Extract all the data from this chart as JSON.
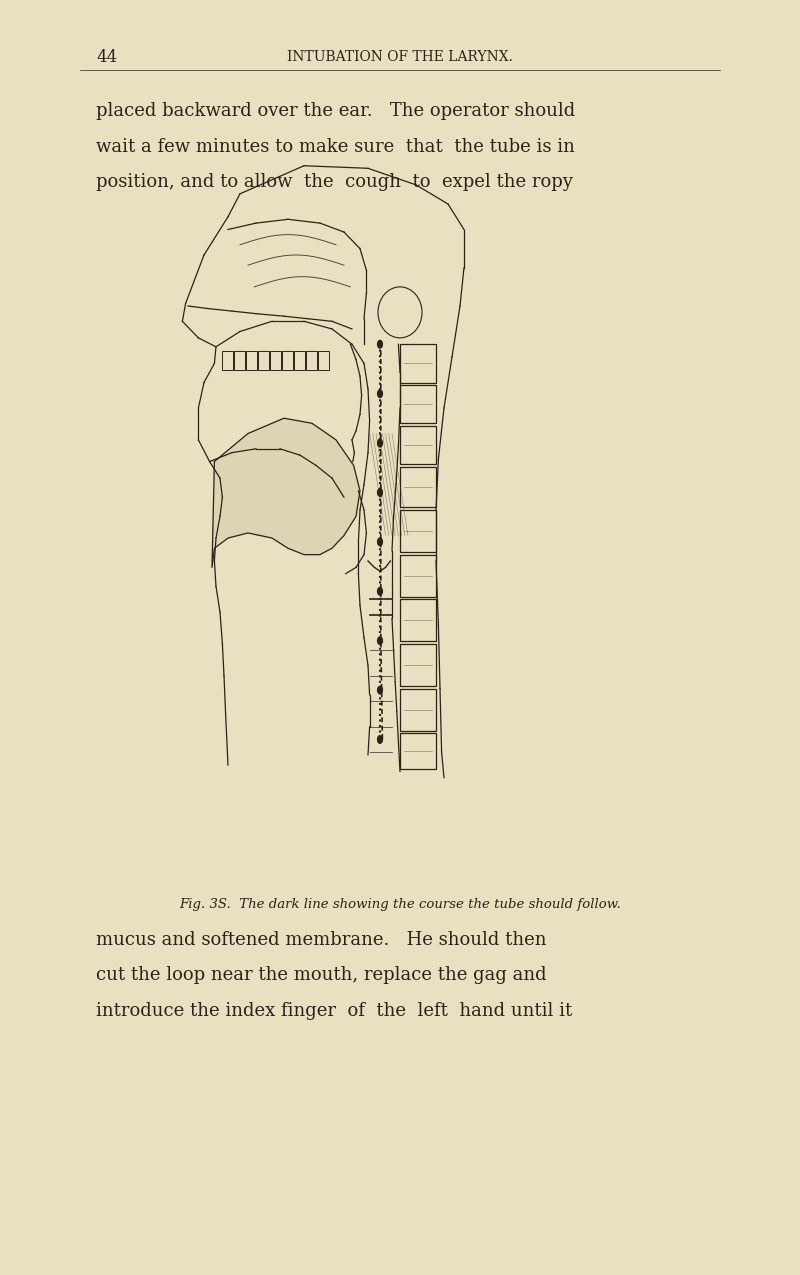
{
  "page_bg": "#e8e0c0",
  "text_color": "#2a2318",
  "page_number": "44",
  "header_center": "INTUBATION OF THE LARYNX.",
  "body_text_top": [
    "placed backward over the ear.   The operator should",
    "wait a few minutes to make sure  that  the tube is in",
    "position, and to allow  the  cough  to  expel the ropy"
  ],
  "caption": "Fig. 3S.  The dark line showing the course the tube should follow.",
  "body_text_bottom": [
    "mucus and softened membrane.   He should then",
    "cut the loop near the mouth, replace the gag and",
    "introduce the index finger  of  the  left  hand until it"
  ],
  "header_fontsize": 10,
  "body_fontsize": 13,
  "caption_fontsize": 9.5,
  "pagenumber_fontsize": 12
}
